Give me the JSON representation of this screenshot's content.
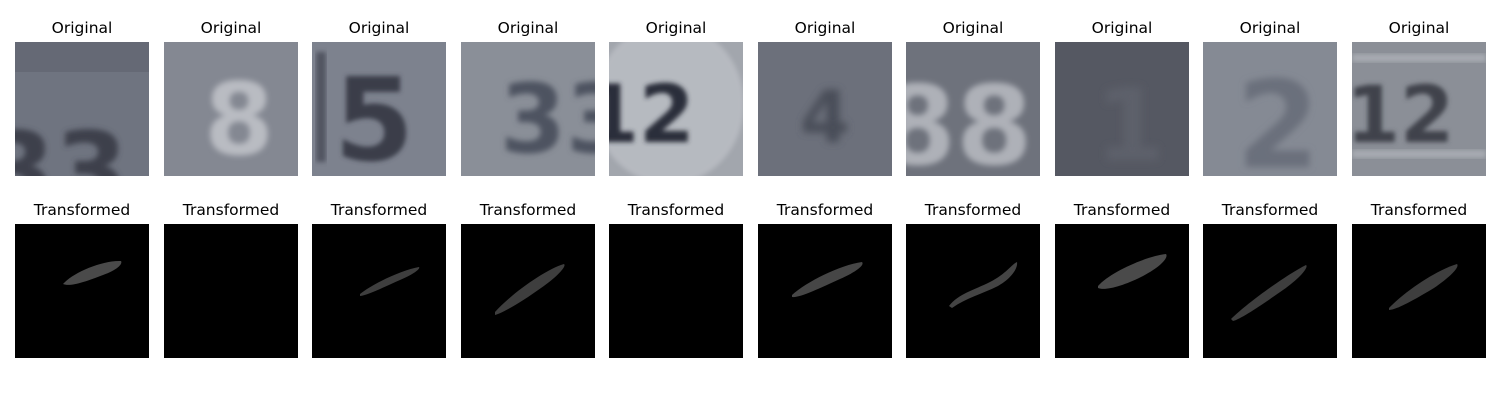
{
  "grid": {
    "original_label": "Original",
    "transformed_label": "Transformed",
    "panels": [
      {
        "original": {
          "digits": "33",
          "bg": "#6f7480",
          "ink": "#3d404c"
        },
        "transformed": {
          "stroke": true,
          "color": "#4a4a4a"
        }
      },
      {
        "original": {
          "digits": "8",
          "bg": "#848892",
          "ink": "#b9bcc2"
        },
        "transformed": {
          "stroke": false,
          "color": "#000000"
        }
      },
      {
        "original": {
          "digits": "5",
          "bg": "#7d828e",
          "ink": "#3a3d4a"
        },
        "transformed": {
          "stroke": true,
          "color": "#3e3e3e"
        }
      },
      {
        "original": {
          "digits": "33",
          "bg": "#8a8f98",
          "ink": "#4d5260"
        },
        "transformed": {
          "stroke": true,
          "color": "#3e3e3e"
        }
      },
      {
        "original": {
          "digits": "12",
          "bg": "#a2a6ad",
          "ink": "#2c2f3a"
        },
        "transformed": {
          "stroke": false,
          "color": "#000000"
        }
      },
      {
        "original": {
          "digits": "4",
          "bg": "#6c707b",
          "ink": "#4a4e58"
        },
        "transformed": {
          "stroke": true,
          "color": "#464646"
        }
      },
      {
        "original": {
          "digits": "88",
          "bg": "#6e727c",
          "ink": "#aeb1b8"
        },
        "transformed": {
          "stroke": true,
          "color": "#444444"
        }
      },
      {
        "original": {
          "digits": "1",
          "bg": "#555862",
          "ink": "#5d606a"
        },
        "transformed": {
          "stroke": true,
          "color": "#4a4a4a"
        }
      },
      {
        "original": {
          "digits": "2",
          "bg": "#858a94",
          "ink": "#6b707b"
        },
        "transformed": {
          "stroke": true,
          "color": "#3e3e3e"
        }
      },
      {
        "original": {
          "digits": "12",
          "bg": "#8b8f97",
          "ink": "#3f424c"
        },
        "transformed": {
          "stroke": true,
          "color": "#3e3e3e"
        }
      }
    ]
  }
}
